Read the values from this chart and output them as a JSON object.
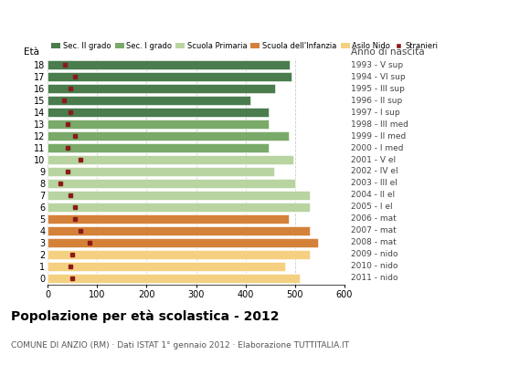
{
  "ages": [
    18,
    17,
    16,
    15,
    14,
    13,
    12,
    11,
    10,
    9,
    8,
    7,
    6,
    5,
    4,
    3,
    2,
    1,
    0
  ],
  "years": [
    "1993 - V sup",
    "1994 - VI sup",
    "1995 - III sup",
    "1996 - II sup",
    "1997 - I sup",
    "1998 - III med",
    "1999 - II med",
    "2000 - I med",
    "2001 - V el",
    "2002 - IV el",
    "2003 - III el",
    "2004 - II el",
    "2005 - I el",
    "2006 - mat",
    "2007 - mat",
    "2008 - mat",
    "2009 - nido",
    "2010 - nido",
    "2011 - nido"
  ],
  "bar_values": [
    490,
    493,
    460,
    410,
    447,
    447,
    487,
    447,
    497,
    457,
    500,
    530,
    530,
    487,
    530,
    547,
    530,
    480,
    510
  ],
  "stranieri_values": [
    35,
    55,
    45,
    32,
    45,
    40,
    55,
    40,
    67,
    40,
    25,
    45,
    55,
    55,
    67,
    85,
    50,
    45,
    50
  ],
  "bar_colors": {
    "sec2": "#4a7c4e",
    "sec1": "#7aaa6a",
    "primaria": "#b8d4a0",
    "infanzia": "#d4823a",
    "nido": "#f5d080"
  },
  "age_school": {
    "sec2": [
      14,
      15,
      16,
      17,
      18
    ],
    "sec1": [
      11,
      12,
      13
    ],
    "primaria": [
      6,
      7,
      8,
      9,
      10
    ],
    "infanzia": [
      3,
      4,
      5
    ],
    "nido": [
      0,
      1,
      2
    ]
  },
  "legend_labels": [
    "Sec. II grado",
    "Sec. I grado",
    "Scuola Primaria",
    "Scuola dell'Infanzia",
    "Asilo Nido",
    "Stranieri"
  ],
  "legend_colors": [
    "#4a7c4e",
    "#7aaa6a",
    "#b8d4a0",
    "#d4823a",
    "#f5d080",
    "#8b1a1a"
  ],
  "stranieri_color": "#8b1a1a",
  "title": "Popolazione per età scolastica - 2012",
  "subtitle": "COMUNE DI ANZIO (RM) · Dati ISTAT 1° gennaio 2012 · Elaborazione TUTTITALIA.IT",
  "xlabel_eta": "Età",
  "xlabel_anno": "Anno di nascita",
  "xlim": [
    0,
    600
  ],
  "background_color": "#ffffff",
  "grid_color": "#cccccc"
}
